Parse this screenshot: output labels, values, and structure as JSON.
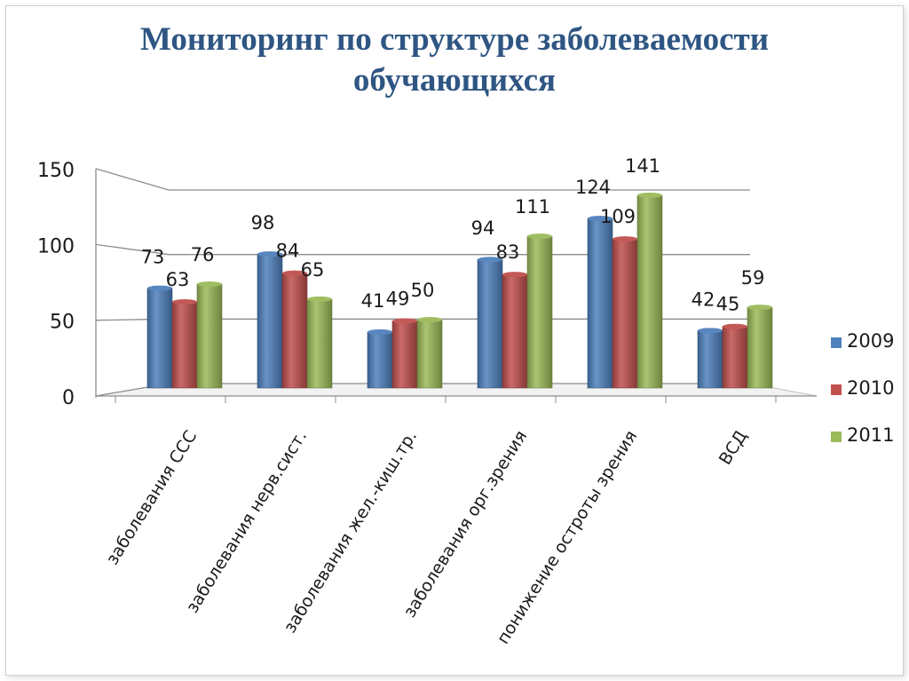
{
  "title_lines": [
    "Мониторинг по структуре заболеваемости",
    "обучающихся"
  ],
  "chart_data": {
    "type": "bar",
    "title": "Мониторинг по структуре заболеваемости обучающихся",
    "categories": [
      "заболевания ССС",
      "заболевания нерв.сист.",
      "заболевания жел.-киш.тр.",
      "заболевания орг.зрения",
      "понижение остроты зрения",
      "ВСД"
    ],
    "series": [
      {
        "name": "2009",
        "color": "#4f81bd",
        "values": [
          73,
          98,
          41,
          94,
          124,
          42
        ]
      },
      {
        "name": "2010",
        "color": "#c0504d",
        "values": [
          63,
          84,
          49,
          83,
          109,
          45
        ]
      },
      {
        "name": "2011",
        "color": "#9bbb59",
        "values": [
          76,
          65,
          50,
          111,
          141,
          59
        ]
      }
    ],
    "yticks": [
      0,
      50,
      100,
      150
    ],
    "ylim": [
      0,
      150
    ],
    "grid": true,
    "legend": "right",
    "data_labels": true
  }
}
